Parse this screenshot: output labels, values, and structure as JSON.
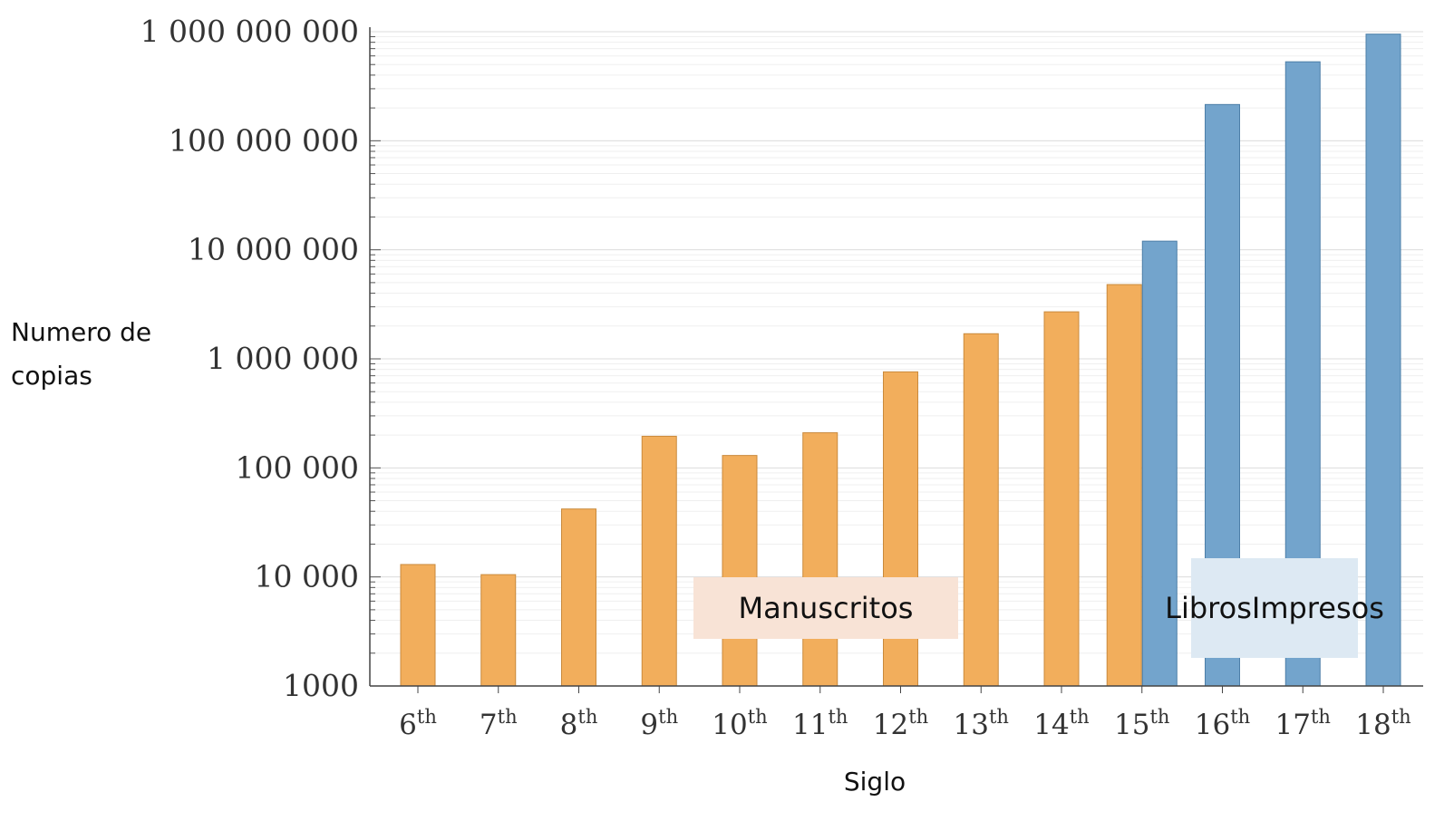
{
  "chart_data": {
    "type": "bar",
    "scale": "log",
    "ylim": [
      1000,
      1000000000
    ],
    "yticks": [
      "1 000 000 000",
      "100 000 000",
      "10 000 000",
      "1 000 000",
      "100 000",
      "10 000",
      "1000"
    ],
    "ytick_values": [
      1000000000,
      100000000,
      10000000,
      1000000,
      100000,
      10000,
      1000
    ],
    "categories": [
      {
        "n": "6",
        "sup": "th"
      },
      {
        "n": "7",
        "sup": "th"
      },
      {
        "n": "8",
        "sup": "th"
      },
      {
        "n": "9",
        "sup": "th"
      },
      {
        "n": "10",
        "sup": "th"
      },
      {
        "n": "11",
        "sup": "th"
      },
      {
        "n": "12",
        "sup": "th"
      },
      {
        "n": "13",
        "sup": "th"
      },
      {
        "n": "14",
        "sup": "th"
      },
      {
        "n": "15",
        "sup": "th"
      },
      {
        "n": "16",
        "sup": "th"
      },
      {
        "n": "17",
        "sup": "th"
      },
      {
        "n": "18",
        "sup": "th"
      }
    ],
    "series": [
      {
        "color": "#f2ae5c",
        "edge": "#c98a3d",
        "offset": -0.22,
        "values": [
          13000,
          10500,
          42000,
          195000,
          130000,
          210000,
          760000,
          1700000,
          2700000,
          4800000,
          null,
          null,
          null
        ]
      },
      {
        "color": "#73a4cc",
        "edge": "#4d7fa8",
        "offset": 0.22,
        "values": [
          null,
          null,
          null,
          null,
          null,
          null,
          null,
          null,
          null,
          12000000,
          215000000,
          530000000,
          950000000
        ]
      }
    ],
    "xlabel": "Siglo",
    "ylabel": "Numero de copias",
    "grid": true
  },
  "annotations": {
    "manuscritos": "Manuscritos",
    "libros_line1": "Libros",
    "libros_line2": "Impresos"
  }
}
